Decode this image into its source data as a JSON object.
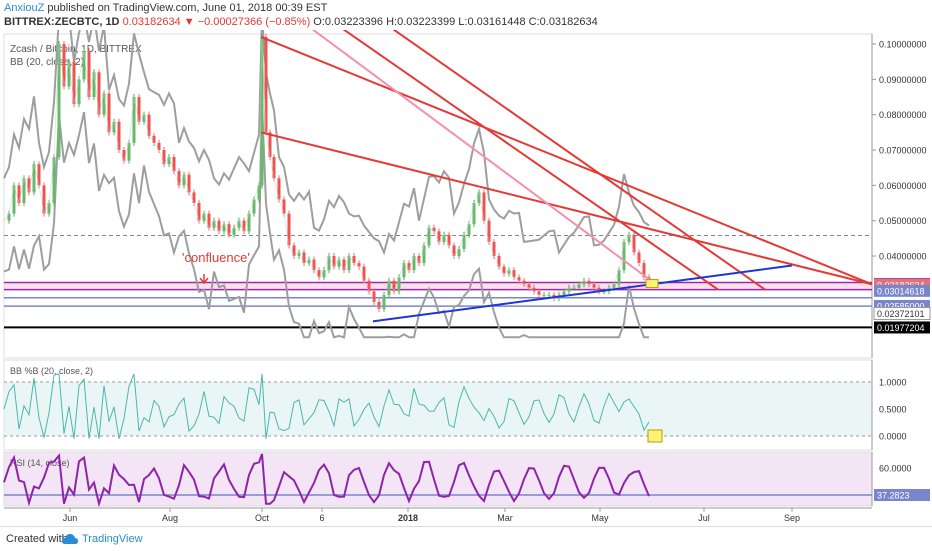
{
  "header": {
    "author": "AnxiouZ",
    "published": "published on TradingView.com, June 01, 2018 00:39 EST",
    "symbol": "BITTREX:ZECBTC, 1D",
    "last": "0.03182634",
    "change": "▼ −0.00027366 (−0.85%)",
    "open": "O:0.03223396",
    "high": "H:0.03223399",
    "low": "L:0.03161448",
    "close": "C:0.03182634"
  },
  "chart_data": {
    "type": "candlestick",
    "title": "Zcash / Bitcoin, 1D, BITTREX",
    "indicator_main": "BB (20, close, 2)",
    "y_ticks": [
      "0.10000000",
      "0.09000000",
      "0.08000000",
      "0.07000000",
      "0.06000000",
      "0.05000000",
      "0.04000000"
    ],
    "y_tick_values": [
      0.1,
      0.09,
      0.08,
      0.07,
      0.06,
      0.05,
      0.04
    ],
    "price_labels": [
      {
        "text": "0.03204756",
        "value": 0.03204756,
        "bg": "#9c27b0"
      },
      {
        "text": "0.03182634",
        "value": 0.03182634,
        "bg": "#e57373"
      },
      {
        "text": "0.03014618",
        "value": 0.03014618,
        "bg": "#7986cb"
      },
      {
        "text": "0.02585000",
        "value": 0.02585,
        "bg": "#7986cb"
      },
      {
        "text": "0.02372101",
        "value": 0.02372101,
        "bg": "#ffffff"
      },
      {
        "text": "0.01977204",
        "value": 0.01977204,
        "bg": "#000000"
      }
    ],
    "x_ticks": [
      "Jun",
      "Aug",
      "Oct",
      "6",
      "2018",
      "Mar",
      "May",
      "Jul",
      "Sep"
    ],
    "annotation": "'confluence'",
    "price_path": [
      [
        0,
        0.05
      ],
      [
        5,
        0.052
      ],
      [
        10,
        0.06
      ],
      [
        15,
        0.055
      ],
      [
        20,
        0.062
      ],
      [
        25,
        0.058
      ],
      [
        30,
        0.066
      ],
      [
        35,
        0.06
      ],
      [
        40,
        0.052
      ],
      [
        45,
        0.055
      ],
      [
        50,
        0.068
      ],
      [
        55,
        0.1
      ],
      [
        60,
        0.088
      ],
      [
        65,
        0.095
      ],
      [
        70,
        0.083
      ],
      [
        75,
        0.09
      ],
      [
        80,
        0.098
      ],
      [
        85,
        0.085
      ],
      [
        90,
        0.092
      ],
      [
        95,
        0.08
      ],
      [
        100,
        0.086
      ],
      [
        105,
        0.075
      ],
      [
        110,
        0.078
      ],
      [
        115,
        0.07
      ],
      [
        120,
        0.067
      ],
      [
        125,
        0.072
      ],
      [
        130,
        0.085
      ],
      [
        135,
        0.078
      ],
      [
        140,
        0.08
      ],
      [
        145,
        0.074
      ],
      [
        150,
        0.072
      ],
      [
        155,
        0.07
      ],
      [
        160,
        0.066
      ],
      [
        165,
        0.068
      ],
      [
        170,
        0.064
      ],
      [
        175,
        0.06
      ],
      [
        180,
        0.063
      ],
      [
        185,
        0.058
      ],
      [
        190,
        0.055
      ],
      [
        195,
        0.05
      ],
      [
        200,
        0.052
      ],
      [
        205,
        0.048
      ],
      [
        210,
        0.05
      ],
      [
        215,
        0.047
      ],
      [
        220,
        0.049
      ],
      [
        225,
        0.046
      ],
      [
        230,
        0.048
      ],
      [
        235,
        0.05
      ],
      [
        240,
        0.047
      ],
      [
        245,
        0.052
      ],
      [
        250,
        0.056
      ],
      [
        255,
        0.06
      ],
      [
        258,
        0.102
      ],
      [
        262,
        0.075
      ],
      [
        266,
        0.068
      ],
      [
        270,
        0.062
      ],
      [
        275,
        0.056
      ],
      [
        280,
        0.052
      ],
      [
        285,
        0.043
      ],
      [
        290,
        0.04
      ],
      [
        295,
        0.041
      ],
      [
        300,
        0.038
      ],
      [
        305,
        0.039
      ],
      [
        310,
        0.036
      ],
      [
        315,
        0.034
      ],
      [
        320,
        0.036
      ],
      [
        325,
        0.04
      ],
      [
        330,
        0.037
      ],
      [
        335,
        0.039
      ],
      [
        340,
        0.036
      ],
      [
        345,
        0.04
      ],
      [
        350,
        0.038
      ],
      [
        355,
        0.037
      ],
      [
        360,
        0.033
      ],
      [
        365,
        0.03
      ],
      [
        370,
        0.027
      ],
      [
        375,
        0.025
      ],
      [
        380,
        0.029
      ],
      [
        385,
        0.033
      ],
      [
        390,
        0.03
      ],
      [
        395,
        0.034
      ],
      [
        400,
        0.038
      ],
      [
        405,
        0.036
      ],
      [
        410,
        0.04
      ],
      [
        415,
        0.038
      ],
      [
        420,
        0.043
      ],
      [
        425,
        0.048
      ],
      [
        430,
        0.047
      ],
      [
        435,
        0.044
      ],
      [
        440,
        0.046
      ],
      [
        445,
        0.043
      ],
      [
        450,
        0.04
      ],
      [
        455,
        0.042
      ],
      [
        460,
        0.046
      ],
      [
        465,
        0.049
      ],
      [
        470,
        0.055
      ],
      [
        475,
        0.058
      ],
      [
        480,
        0.05
      ],
      [
        485,
        0.044
      ],
      [
        490,
        0.04
      ],
      [
        495,
        0.037
      ],
      [
        500,
        0.035
      ],
      [
        505,
        0.036
      ],
      [
        510,
        0.034
      ],
      [
        515,
        0.033
      ],
      [
        520,
        0.032
      ],
      [
        525,
        0.031
      ],
      [
        530,
        0.03
      ],
      [
        535,
        0.029
      ],
      [
        540,
        0.029
      ],
      [
        545,
        0.029
      ],
      [
        550,
        0.028
      ],
      [
        555,
        0.029
      ],
      [
        560,
        0.03
      ],
      [
        565,
        0.031
      ],
      [
        570,
        0.031
      ],
      [
        575,
        0.032
      ],
      [
        580,
        0.033
      ],
      [
        585,
        0.032
      ],
      [
        590,
        0.031
      ],
      [
        595,
        0.03
      ],
      [
        600,
        0.03
      ],
      [
        605,
        0.031
      ],
      [
        610,
        0.032
      ],
      [
        615,
        0.036
      ],
      [
        620,
        0.044
      ],
      [
        625,
        0.046
      ],
      [
        630,
        0.041
      ],
      [
        635,
        0.038
      ],
      [
        640,
        0.034
      ],
      [
        645,
        0.0318
      ]
    ]
  },
  "bbpct": {
    "label": "BB %B (20, close, 2)",
    "ticks": [
      "1.0000",
      "0.5000",
      "0.0000"
    ],
    "tick_values": [
      1.0,
      0.5,
      0.0
    ]
  },
  "rsi": {
    "label": "RSI (14, close)",
    "tick": "60.0000",
    "tick_value": 60,
    "last_label": "37.2823",
    "last_value": 37.28
  },
  "footer": {
    "created": "Created with",
    "brand": "TradingView"
  }
}
